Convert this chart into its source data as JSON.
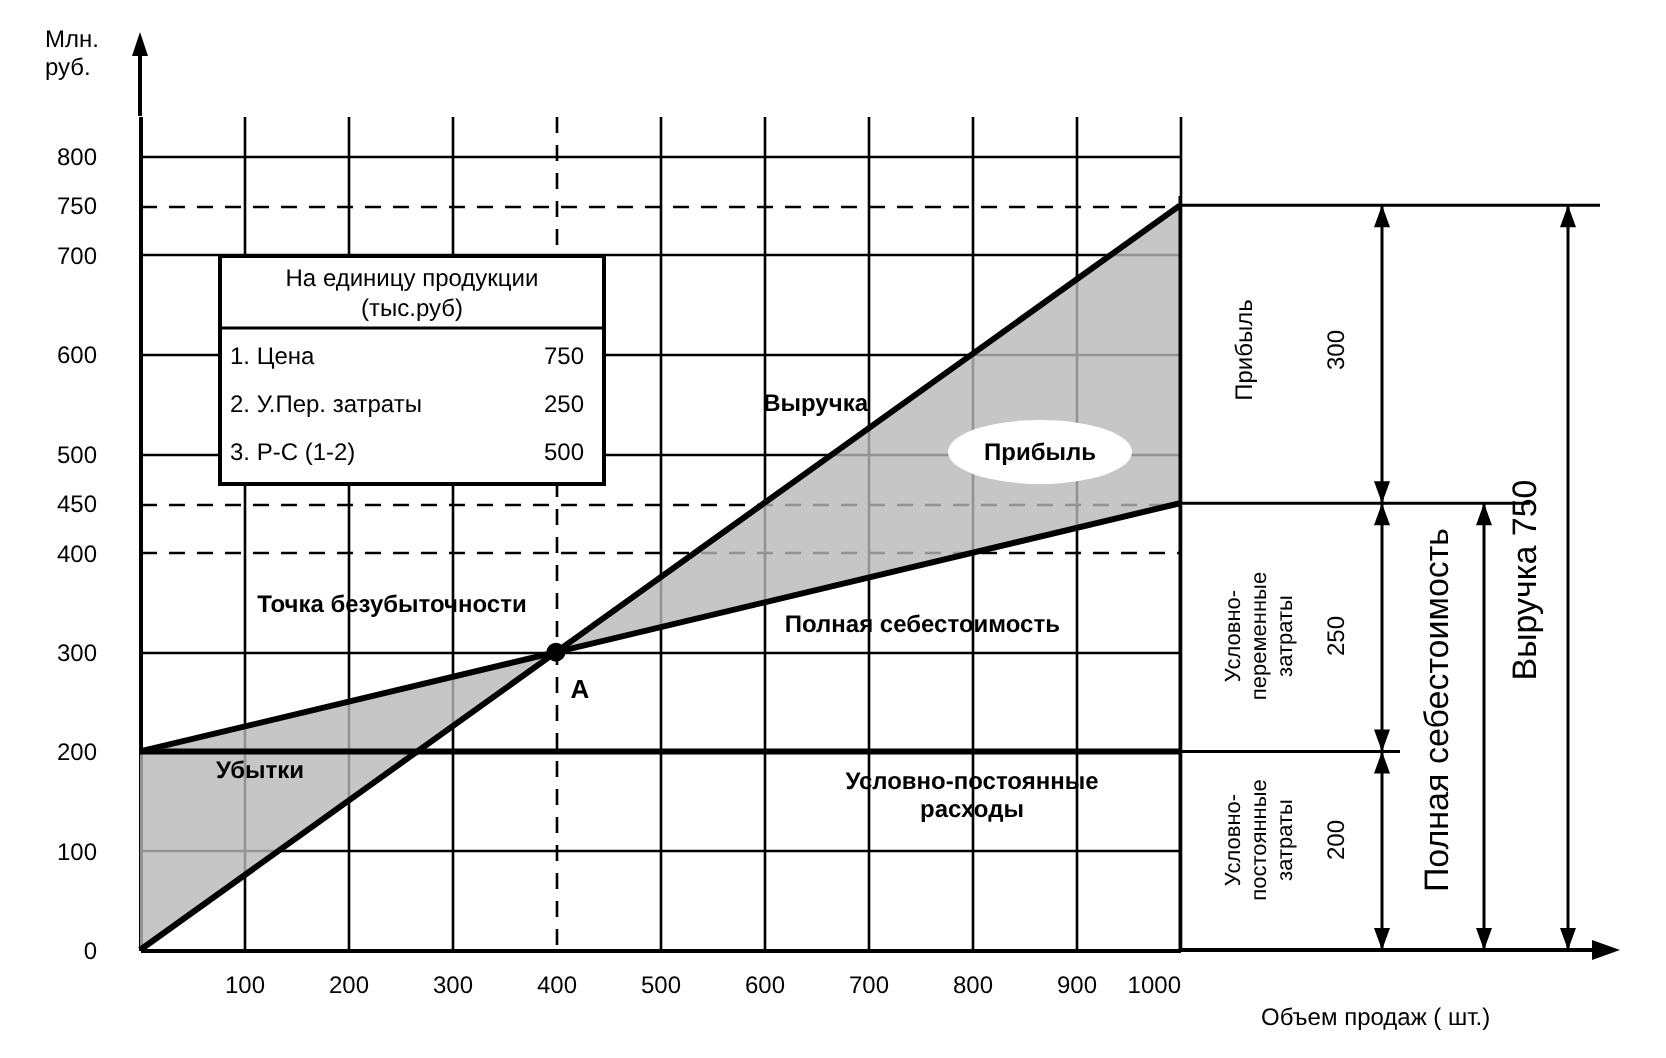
{
  "chart_data": {
    "type": "line",
    "xlabel": "Объем продаж ( шт.)",
    "ylabel": "Млн. руб.",
    "xlim": [
      0,
      1000
    ],
    "ylim": [
      0,
      840
    ],
    "xticks": [
      100,
      200,
      300,
      400,
      500,
      600,
      700,
      800,
      900,
      1000
    ],
    "yticks": [
      0,
      100,
      200,
      300,
      400,
      450,
      500,
      600,
      700,
      750,
      800
    ],
    "grid": true,
    "line_style": "solid",
    "marker": "none",
    "series": [
      {
        "name": "Выручка",
        "color": "#000000",
        "x": [
          0,
          400,
          1000
        ],
        "values": [
          0,
          300,
          750
        ]
      },
      {
        "name": "Полная себестоимость",
        "color": "#000000",
        "x": [
          0,
          400,
          1000
        ],
        "values": [
          200,
          300,
          450
        ],
        "lower": [
          0,
          300,
          450
        ],
        "upper": [
          200,
          300,
          750
        ]
      },
      {
        "name": "Условно-постоянные расходы",
        "color": "#000000",
        "x": [
          0,
          1000
        ],
        "values": [
          200,
          200
        ]
      },
      {
        "type": "scatter",
        "marker": "circle",
        "color": "#000000",
        "x": [
          400
        ],
        "values": [
          300
        ]
      }
    ],
    "ref_lines": [
      {
        "axis": "x",
        "value": 400,
        "line_style": "dashed"
      },
      {
        "axis": "y",
        "value": 400,
        "line_style": "dashed"
      },
      {
        "axis": "y",
        "value": 450,
        "line_style": "dashed"
      },
      {
        "axis": "y",
        "value": 750,
        "line_style": "dashed"
      }
    ],
    "annotations": [
      "На единицу продукции (тыс.руб)",
      "1. Цена",
      "750",
      "2. У.Пер. затраты",
      "250",
      "3. Р-С (1-2)",
      "500",
      "Точка безубыточности",
      "A",
      "Прибыль",
      "Убытки",
      "Прибыль",
      "300",
      "Условно-переменные затраты",
      "250",
      "Условно-постоянные затраты",
      "200",
      "Полная себестоимость",
      "Выручка 750"
    ]
  }
}
